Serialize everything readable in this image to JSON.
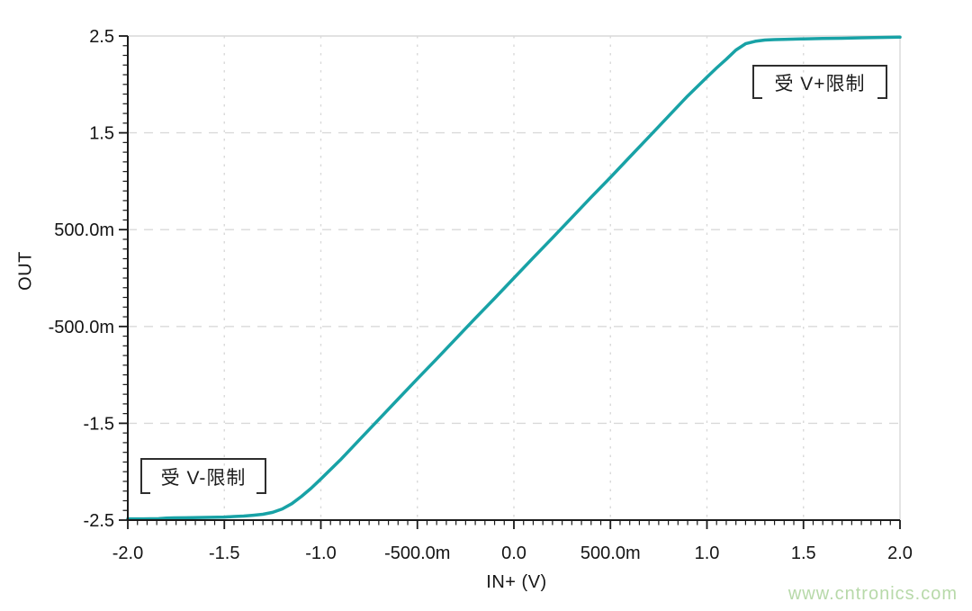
{
  "watermark": {
    "text": "www.cntronics.com",
    "color": "#b7d9a9"
  },
  "colors": {
    "curve": "#18a2a6",
    "grid": "#d9d9d9",
    "axis": "#1a1a1a",
    "annotation_border": "#2e2e2e"
  },
  "chart_data": {
    "type": "line",
    "title": "",
    "xlabel": "IN+ (V)",
    "ylabel": "OUT",
    "xlim": [
      -2.0,
      2.0
    ],
    "ylim": [
      -2.5,
      2.5
    ],
    "grid": {
      "style": "dashed",
      "color": "#d9d9d9",
      "boundary_solid": true
    },
    "legend": "none",
    "x_ticks": [
      {
        "value": -2.0,
        "label": "-2.0"
      },
      {
        "value": -1.5,
        "label": "-1.5"
      },
      {
        "value": -1.0,
        "label": "-1.0"
      },
      {
        "value": -0.5,
        "label": "-500.0m"
      },
      {
        "value": 0.0,
        "label": "0.0"
      },
      {
        "value": 0.5,
        "label": "500.0m"
      },
      {
        "value": 1.0,
        "label": "1.0"
      },
      {
        "value": 1.5,
        "label": "1.5"
      },
      {
        "value": 2.0,
        "label": "2.0"
      }
    ],
    "y_ticks": [
      {
        "value": 2.5,
        "label": "2.5"
      },
      {
        "value": 1.5,
        "label": "1.5"
      },
      {
        "value": 0.5,
        "label": "500.0m"
      },
      {
        "value": -0.5,
        "label": "-500.0m"
      },
      {
        "value": -1.5,
        "label": "-1.5"
      },
      {
        "value": -2.5,
        "label": "-2.5"
      }
    ],
    "x_minor_step": 0.05,
    "y_minor_step": 0.1,
    "series": [
      {
        "name": "OUT vs IN+ transfer curve",
        "color": "#18a2a6",
        "x": [
          -2.0,
          -1.92,
          -1.84,
          -1.8,
          -1.76,
          -1.7,
          -1.6,
          -1.5,
          -1.45,
          -1.4,
          -1.35,
          -1.3,
          -1.25,
          -1.2,
          -1.15,
          -1.1,
          -1.05,
          -1.0,
          -0.9,
          -0.8,
          -0.7,
          -0.6,
          -0.5,
          -0.4,
          -0.3,
          -0.2,
          -0.1,
          0.0,
          0.1,
          0.2,
          0.3,
          0.4,
          0.5,
          0.6,
          0.7,
          0.8,
          0.9,
          1.0,
          1.05,
          1.1,
          1.15,
          1.2,
          1.25,
          1.3,
          1.35,
          1.4,
          1.5,
          1.6,
          1.7,
          1.8,
          1.9,
          2.0
        ],
        "y": [
          -2.487,
          -2.487,
          -2.485,
          -2.479,
          -2.477,
          -2.476,
          -2.472,
          -2.468,
          -2.463,
          -2.458,
          -2.45,
          -2.44,
          -2.42,
          -2.385,
          -2.33,
          -2.255,
          -2.17,
          -2.075,
          -1.88,
          -1.67,
          -1.46,
          -1.25,
          -1.04,
          -0.835,
          -0.625,
          -0.415,
          -0.21,
          0.0,
          0.21,
          0.415,
          0.625,
          0.835,
          1.04,
          1.25,
          1.46,
          1.67,
          1.88,
          2.075,
          2.17,
          2.26,
          2.355,
          2.42,
          2.445,
          2.458,
          2.463,
          2.466,
          2.47,
          2.474,
          2.477,
          2.481,
          2.485,
          2.488
        ]
      }
    ],
    "annotations": [
      {
        "text": "受 V+限制",
        "x": 1.6,
        "y": 2.08,
        "meaning": "limited by V+ rail"
      },
      {
        "text": "受 V-限制",
        "x": -1.6,
        "y": -2.11,
        "meaning": "limited by V- rail"
      }
    ]
  }
}
